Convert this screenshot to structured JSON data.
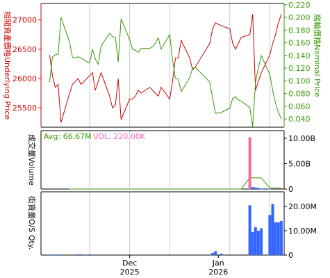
{
  "colors": {
    "underlying": "#cc0000",
    "nominal": "#339900",
    "frame": "#000000",
    "grid": "#c8c8c8",
    "volume_bar": "#ff6699",
    "os_bar": "#3366ff",
    "avg_line": "#339900",
    "vol_text": "#ff66aa",
    "avg_text": "#339900"
  },
  "left_label_main": "相關資產價格Underlying Price",
  "right_label_main": "窩輪價格Nominal Price",
  "left_label_volume": "成交量Volume",
  "left_label_os": "街貨量O/S Qty.",
  "volume_legend": {
    "avg": "Avg: 66.67M",
    "vol": "VOL: 220.00K"
  },
  "chart_data": [
    {
      "type": "line",
      "x": [
        "2025-11-03",
        "2025-11-04",
        "2025-11-05",
        "2025-11-06",
        "2025-11-07",
        "2025-11-10",
        "2025-11-11",
        "2025-11-12",
        "2025-11-13",
        "2025-11-14",
        "2025-11-17",
        "2025-11-18",
        "2025-11-19",
        "2025-11-20",
        "2025-11-21",
        "2025-11-24",
        "2025-11-25",
        "2025-11-26",
        "2025-11-27",
        "2025-11-28",
        "2025-12-01",
        "2025-12-02",
        "2025-12-03",
        "2025-12-04",
        "2025-12-05",
        "2025-12-08",
        "2025-12-09",
        "2025-12-10",
        "2025-12-11",
        "2025-12-12",
        "2025-12-15",
        "2025-12-16",
        "2025-12-17",
        "2025-12-18",
        "2025-12-19",
        "2025-12-22",
        "2025-12-23",
        "2025-12-24",
        "2025-12-29",
        "2025-12-30",
        "2025-12-31",
        "2026-01-02",
        "2026-01-05",
        "2026-01-06",
        "2026-01-07",
        "2026-01-08",
        "2026-01-09",
        "2026-01-12",
        "2026-01-13",
        "2026-01-14",
        "2026-01-15",
        "2026-01-16",
        "2026-01-19",
        "2026-01-20",
        "2026-01-21",
        "2026-01-22",
        "2026-01-23"
      ],
      "left_axis": {
        "ticks": [
          25500,
          26000,
          26500,
          27000
        ],
        "range": [
          25170,
          27280
        ]
      },
      "right_axis": {
        "ticks": [
          "0.040",
          "0.060",
          "0.080",
          "0.100",
          "0.120",
          "0.140",
          "0.160",
          "0.180",
          "0.200",
          "0.220"
        ],
        "range": [
          0.027,
          0.222
        ]
      },
      "series": [
        {
          "axis": "left",
          "values": [
            26400,
            26050,
            25850,
            25900,
            25250,
            25750,
            25900,
            25950,
            26000,
            25900,
            26050,
            26100,
            25800,
            25950,
            26100,
            25700,
            25500,
            25550,
            26000,
            25300,
            25650,
            25650,
            25700,
            25800,
            25750,
            25850,
            25800,
            25750,
            25700,
            25850,
            25650,
            25950,
            26350,
            26350,
            26650,
            26350,
            26150,
            26200,
            26600,
            26850,
            26950,
            26900,
            26850,
            26600,
            26500,
            26600,
            26700,
            26750,
            27100,
            25800,
            25950,
            26100,
            26400,
            26600,
            26750,
            26950,
            27100
          ]
        },
        {
          "axis": "right",
          "values": [
            0.098,
            0.138,
            0.141,
            0.142,
            0.2,
            0.161,
            0.137,
            0.136,
            0.138,
            0.136,
            0.128,
            0.15,
            0.135,
            0.126,
            0.155,
            0.175,
            0.17,
            0.168,
            0.13,
            0.198,
            0.165,
            0.15,
            0.148,
            0.145,
            0.151,
            0.151,
            0.154,
            0.16,
            0.168,
            0.15,
            0.173,
            0.133,
            0.104,
            0.103,
            0.083,
            0.105,
            0.12,
            0.121,
            0.098,
            0.072,
            0.049,
            0.05,
            0.057,
            0.072,
            0.075,
            0.07,
            0.068,
            0.058,
            0.028,
            0.098,
            0.12,
            0.14,
            0.11,
            0.085,
            0.065,
            0.05,
            0.04
          ]
        }
      ]
    },
    {
      "type": "bar",
      "title": "Volume",
      "axis": {
        "ticks": [
          "0",
          "5.00B",
          "10.00B"
        ],
        "range": [
          0,
          11500000000
        ]
      },
      "values": [
        {
          "date": "2026-01-12",
          "value": 10200000000
        },
        {
          "date": "2026-01-13",
          "value": 400000000
        },
        {
          "date": "2026-01-14",
          "value": 300000000
        },
        {
          "date": "2026-01-15",
          "value": 200000000
        },
        {
          "date": "2026-01-16",
          "value": 100000000
        },
        {
          "date": "2026-01-19",
          "value": 50000000
        }
      ],
      "avg_line": [
        {
          "date": "2025-11-10",
          "value": 0
        },
        {
          "date": "2026-01-09",
          "value": 0
        },
        {
          "date": "2026-01-12",
          "value": 2200000000
        },
        {
          "date": "2026-01-16",
          "value": 2200000000
        },
        {
          "date": "2026-01-19",
          "value": 200000000
        },
        {
          "date": "2026-01-23",
          "value": 200000000
        }
      ]
    },
    {
      "type": "bar",
      "title": "O/S Qty.",
      "axis": {
        "ticks": [
          "0",
          "10.00M",
          "20.00M"
        ],
        "range": [
          0,
          26000000
        ]
      },
      "values": [
        {
          "date": "2025-11-04",
          "value": 250000
        },
        {
          "date": "2025-11-05",
          "value": 250000
        },
        {
          "date": "2025-11-07",
          "value": 250000
        },
        {
          "date": "2025-11-13",
          "value": 300000
        },
        {
          "date": "2025-11-14",
          "value": 300000
        },
        {
          "date": "2025-11-17",
          "value": 300000
        },
        {
          "date": "2025-12-30",
          "value": 900000
        },
        {
          "date": "2025-12-31",
          "value": 1600000
        },
        {
          "date": "2026-01-02",
          "value": 600000
        },
        {
          "date": "2026-01-12",
          "value": 20500000
        },
        {
          "date": "2026-01-13",
          "value": 9500000
        },
        {
          "date": "2026-01-14",
          "value": 11500000
        },
        {
          "date": "2026-01-15",
          "value": 10000000
        },
        {
          "date": "2026-01-16",
          "value": 11000000
        },
        {
          "date": "2026-01-19",
          "value": 16500000
        },
        {
          "date": "2026-01-20",
          "value": 21000000
        },
        {
          "date": "2026-01-21",
          "value": 13500000
        },
        {
          "date": "2026-01-22",
          "value": 13500000
        },
        {
          "date": "2026-01-23",
          "value": 14000000
        }
      ]
    }
  ],
  "x_axis": {
    "range": [
      "2025-10-31",
      "2026-01-24"
    ],
    "gridlines": [
      "2025-11-17",
      "2025-12-01",
      "2025-12-15",
      "2026-01-05",
      "2026-01-19"
    ],
    "labels": [
      {
        "date": "2025-12-01",
        "month": "Dec",
        "year": "2025"
      },
      {
        "date": "2026-01-01",
        "month": "Jan",
        "year": "2026"
      }
    ]
  }
}
